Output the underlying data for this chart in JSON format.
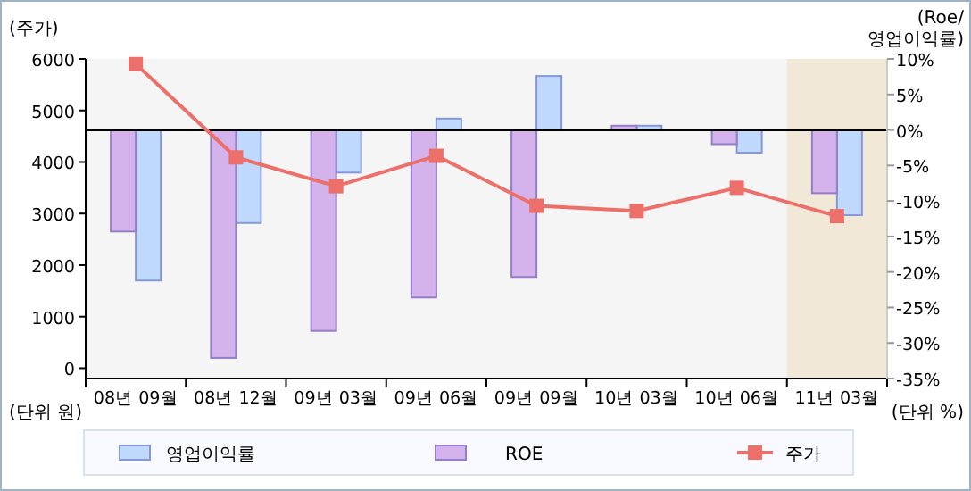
{
  "chart_data": {
    "type": "bar",
    "ylabel": "(주가)",
    "y2label": "(Roe/\n영업이익률)",
    "categories": [
      "08년 09월",
      "08년 12월",
      "09년 03월",
      "09년 06월",
      "09년 09월",
      "10년 03월",
      "10년 06월",
      "11년 03월"
    ],
    "series": [
      {
        "name": "영업이익률",
        "axis": "y2",
        "color": "#c0d9ff",
        "values": [
          -21.2,
          -13.1,
          -6.0,
          1.6,
          7.6,
          0.6,
          -3.2,
          -12.0
        ]
      },
      {
        "name": "ROE",
        "axis": "y2",
        "color": "#d4b3ec",
        "values": [
          -14.3,
          -32.1,
          -28.3,
          -23.6,
          -20.7,
          0.6,
          -2.0,
          -8.9
        ]
      },
      {
        "name": "주가",
        "type": "line",
        "axis": "y",
        "color": "#ec6f6a",
        "marker": "square",
        "values": [
          5900,
          4090,
          3530,
          4120,
          3150,
          3050,
          3500,
          2950
        ]
      }
    ],
    "ylim": [
      -200,
      6000
    ],
    "yticks": [
      0,
      1000,
      2000,
      3000,
      4000,
      5000,
      6000
    ],
    "y2lim": [
      -35,
      10
    ],
    "y2ticks": [
      {
        "value": 10,
        "label": "10%"
      },
      {
        "value": 5,
        "label": "5%"
      },
      {
        "value": 0,
        "label": "0%"
      },
      {
        "value": -5,
        "label": "-5%"
      },
      {
        "value": -10,
        "label": "-10%"
      },
      {
        "value": -15,
        "label": "-15%"
      },
      {
        "value": -20,
        "label": "-20%"
      },
      {
        "value": -25,
        "label": "-25%"
      },
      {
        "value": -30,
        "label": "-30%"
      },
      {
        "value": -35,
        "label": "-35%"
      }
    ],
    "ref_lines": [
      {
        "axis": "y2",
        "value": 0,
        "color": "#000000"
      }
    ],
    "bands": [
      {
        "axis": "x",
        "from": "11년 03월",
        "to": "11년 03월",
        "color": "#f2e8d8"
      }
    ],
    "annotations": [
      "(단위 원)",
      "(단위 %)"
    ],
    "legend": "bottom",
    "grid": false
  }
}
